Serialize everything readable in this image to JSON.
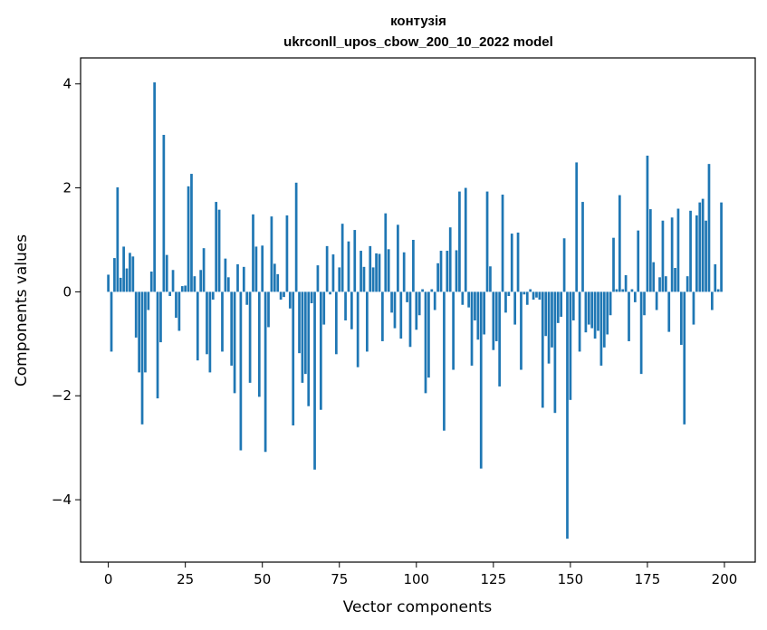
{
  "chart_data": {
    "type": "bar",
    "title": "контузія",
    "subtitle": "ukrconll_upos_cbow_200_10_2022 model",
    "xlabel": "Vector components",
    "ylabel": "Components values",
    "xlim": [
      -9,
      210
    ],
    "ylim": [
      -5.2,
      4.5
    ],
    "xticks": [
      0,
      25,
      50,
      75,
      100,
      125,
      150,
      175,
      200
    ],
    "yticks": [
      -4,
      -2,
      0,
      2,
      4
    ],
    "ytick_labels": [
      "−4",
      "−2",
      "0",
      "2",
      "4"
    ],
    "bar_color": "#1f77b4",
    "values": [
      0.33,
      -1.15,
      0.65,
      2.01,
      0.27,
      0.87,
      0.45,
      0.75,
      0.68,
      -0.88,
      -1.55,
      -2.55,
      -1.55,
      -0.35,
      0.39,
      4.03,
      -2.05,
      -0.97,
      3.02,
      0.71,
      -0.08,
      0.42,
      -0.5,
      -0.75,
      0.11,
      0.12,
      2.03,
      2.27,
      0.3,
      -1.32,
      0.42,
      0.84,
      -1.2,
      -1.55,
      -0.15,
      1.73,
      1.58,
      -1.15,
      0.64,
      0.28,
      -1.42,
      -1.95,
      0.53,
      -3.05,
      0.48,
      -0.25,
      -1.75,
      1.49,
      0.87,
      -2.02,
      0.89,
      -3.08,
      -0.68,
      1.45,
      0.54,
      0.34,
      -0.15,
      -0.1,
      1.47,
      -0.32,
      -2.57,
      2.1,
      -1.18,
      -1.75,
      -1.58,
      -2.2,
      -0.22,
      -3.42,
      0.51,
      -2.27,
      -0.63,
      0.88,
      -0.05,
      0.72,
      -1.2,
      0.47,
      1.31,
      -0.55,
      0.97,
      -0.72,
      1.19,
      -1.45,
      0.79,
      0.48,
      -1.15,
      0.88,
      0.47,
      0.74,
      0.73,
      -0.95,
      1.51,
      0.82,
      -0.4,
      -0.7,
      1.29,
      -0.9,
      0.76,
      -0.2,
      -1.06,
      1.0,
      -0.73,
      -0.45,
      0.05,
      -1.95,
      -1.65,
      0.05,
      -0.35,
      0.55,
      0.79,
      -2.67,
      0.79,
      1.24,
      -1.5,
      0.8,
      1.93,
      -0.25,
      2.0,
      -0.3,
      -1.42,
      -0.55,
      -0.92,
      -3.4,
      -0.82,
      1.93,
      0.49,
      -1.12,
      -0.95,
      -1.82,
      1.87,
      -0.4,
      -0.08,
      1.12,
      -0.63,
      1.14,
      -1.5,
      -0.05,
      -0.25,
      0.05,
      -0.15,
      -0.11,
      -0.15,
      -2.23,
      -0.85,
      -1.38,
      -1.07,
      -2.33,
      -0.6,
      -0.48,
      1.03,
      -4.75,
      -2.08,
      -0.55,
      2.49,
      -1.15,
      1.73,
      -0.78,
      -0.63,
      -0.7,
      -0.9,
      -0.75,
      -1.42,
      -1.07,
      -0.82,
      -0.45,
      1.04,
      0.05,
      1.86,
      0.05,
      0.32,
      -0.95,
      0.05,
      -0.2,
      1.18,
      -1.58,
      -0.45,
      2.62,
      1.59,
      0.57,
      -0.35,
      0.28,
      1.37,
      0.3,
      -0.77,
      1.43,
      0.46,
      1.6,
      -1.02,
      -2.55,
      0.3,
      1.56,
      -0.63,
      1.47,
      1.72,
      1.79,
      1.37,
      2.46,
      -0.35,
      0.53,
      0.05,
      1.72
    ]
  }
}
